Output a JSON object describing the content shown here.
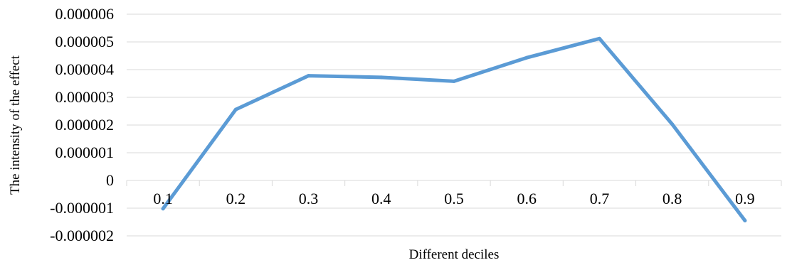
{
  "chart_data": {
    "type": "line",
    "title": "",
    "xlabel": "Different deciles",
    "ylabel": "The intensity of the effect",
    "categories": [
      "0.1",
      "0.2",
      "0.3",
      "0.4",
      "0.5",
      "0.6",
      "0.7",
      "0.8",
      "0.9"
    ],
    "y_ticks": [
      -2e-06,
      -1e-06,
      0,
      1e-06,
      2e-06,
      3e-06,
      4e-06,
      5e-06,
      6e-06
    ],
    "y_tick_labels": [
      "-0.000002",
      "-0.000001",
      "0",
      "0.000001",
      "0.000002",
      "0.000003",
      "0.000004",
      "0.000005",
      "0.000006"
    ],
    "ylim": [
      -2e-06,
      6e-06
    ],
    "grid": "horizontal",
    "legend": "none",
    "series": [
      {
        "color": "#5b9bd5",
        "values": [
          -1.02e-06,
          2.56e-06,
          3.78e-06,
          3.72e-06,
          3.58e-06,
          4.43e-06,
          5.12e-06,
          2.03e-06,
          -1.45e-06
        ]
      }
    ]
  }
}
